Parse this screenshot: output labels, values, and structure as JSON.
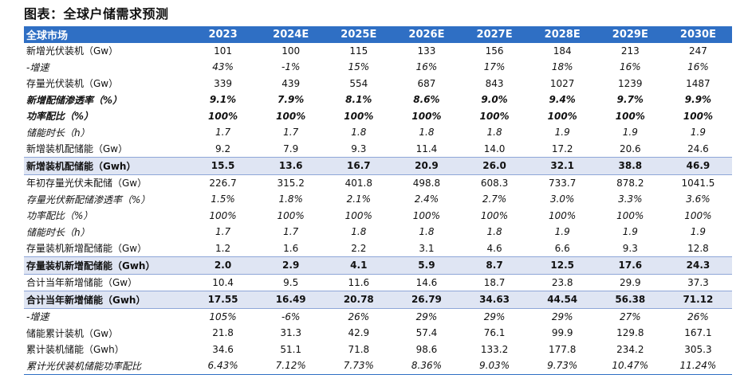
{
  "title": "图表：全球户储需求预测",
  "header": [
    "全球市场",
    "2023",
    "2024E",
    "2025E",
    "2026E",
    "2027E",
    "2028E",
    "2029E",
    "2030E"
  ],
  "rows": [
    {
      "label": "新增光伏装机（Gw）",
      "style": "normal",
      "values": [
        "101",
        "100",
        "115",
        "133",
        "156",
        "184",
        "213",
        "247"
      ]
    },
    {
      "label": "-增速",
      "style": "italic",
      "values": [
        "43%",
        "-1%",
        "15%",
        "16%",
        "17%",
        "18%",
        "16%",
        "16%"
      ]
    },
    {
      "label": "存量光伏装机（Gw）",
      "style": "normal",
      "values": [
        "339",
        "439",
        "554",
        "687",
        "843",
        "1027",
        "1239",
        "1487"
      ]
    },
    {
      "label": "新增配储渗透率（%）",
      "style": "bolditalic",
      "values": [
        "9.1%",
        "7.9%",
        "8.1%",
        "8.6%",
        "9.0%",
        "9.4%",
        "9.7%",
        "9.9%"
      ]
    },
    {
      "label": "功率配比（%）",
      "style": "bolditalic",
      "values": [
        "100%",
        "100%",
        "100%",
        "100%",
        "100%",
        "100%",
        "100%",
        "100%"
      ]
    },
    {
      "label": "储能时长（h）",
      "style": "italic",
      "values": [
        "1.7",
        "1.7",
        "1.8",
        "1.8",
        "1.8",
        "1.9",
        "1.9",
        "1.9"
      ]
    },
    {
      "label": "新增装机配储能（Gw）",
      "style": "normal",
      "values": [
        "9.2",
        "7.9",
        "9.3",
        "11.4",
        "14.0",
        "17.2",
        "20.6",
        "24.6"
      ]
    },
    {
      "label": "新增装机配储能（Gwh）",
      "style": "bold-hl",
      "values": [
        "15.5",
        "13.6",
        "16.7",
        "20.9",
        "26.0",
        "32.1",
        "38.8",
        "46.9"
      ]
    },
    {
      "label": "年初存量光伏未配储（Gw）",
      "style": "normal",
      "values": [
        "226.7",
        "315.2",
        "401.8",
        "498.8",
        "608.3",
        "733.7",
        "878.2",
        "1041.5"
      ]
    },
    {
      "label": "存量光伏新配储渗透率（%）",
      "style": "italic",
      "values": [
        "1.5%",
        "1.8%",
        "2.1%",
        "2.4%",
        "2.7%",
        "3.0%",
        "3.3%",
        "3.6%"
      ]
    },
    {
      "label": "功率配比（%）",
      "style": "italic",
      "values": [
        "100%",
        "100%",
        "100%",
        "100%",
        "100%",
        "100%",
        "100%",
        "100%"
      ]
    },
    {
      "label": "储能时长（h）",
      "style": "italic",
      "values": [
        "1.7",
        "1.7",
        "1.8",
        "1.8",
        "1.8",
        "1.9",
        "1.9",
        "1.9"
      ]
    },
    {
      "label": "存量装机新增配储能（Gw）",
      "style": "normal",
      "values": [
        "1.2",
        "1.6",
        "2.2",
        "3.1",
        "4.6",
        "6.6",
        "9.3",
        "12.8"
      ]
    },
    {
      "label": "存量装机新增配储能（Gwh）",
      "style": "bold-hl",
      "values": [
        "2.0",
        "2.9",
        "4.1",
        "5.9",
        "8.7",
        "12.5",
        "17.6",
        "24.3"
      ]
    },
    {
      "label": "合计当年新增储能（Gw）",
      "style": "normal",
      "values": [
        "10.4",
        "9.5",
        "11.6",
        "14.6",
        "18.7",
        "23.8",
        "29.9",
        "37.3"
      ]
    },
    {
      "label": "合计当年新增储能（Gwh）",
      "style": "bold-hl",
      "values": [
        "17.55",
        "16.49",
        "20.78",
        "26.79",
        "34.63",
        "44.54",
        "56.38",
        "71.12"
      ]
    },
    {
      "label": "-增速",
      "style": "italic",
      "values": [
        "105%",
        "-6%",
        "26%",
        "29%",
        "29%",
        "29%",
        "27%",
        "26%"
      ]
    },
    {
      "label": "储能累计装机（Gw）",
      "style": "normal",
      "values": [
        "21.8",
        "31.3",
        "42.9",
        "57.4",
        "76.1",
        "99.9",
        "129.8",
        "167.1"
      ]
    },
    {
      "label": "累计装机储能（Gwh）",
      "style": "normal",
      "values": [
        "34.6",
        "51.1",
        "71.8",
        "98.6",
        "133.2",
        "177.8",
        "234.2",
        "305.3"
      ]
    },
    {
      "label": "累计光伏装机储能功率配比",
      "style": "italic",
      "values": [
        "6.43%",
        "7.12%",
        "7.73%",
        "8.36%",
        "9.03%",
        "9.73%",
        "10.47%",
        "11.24%"
      ]
    }
  ]
}
